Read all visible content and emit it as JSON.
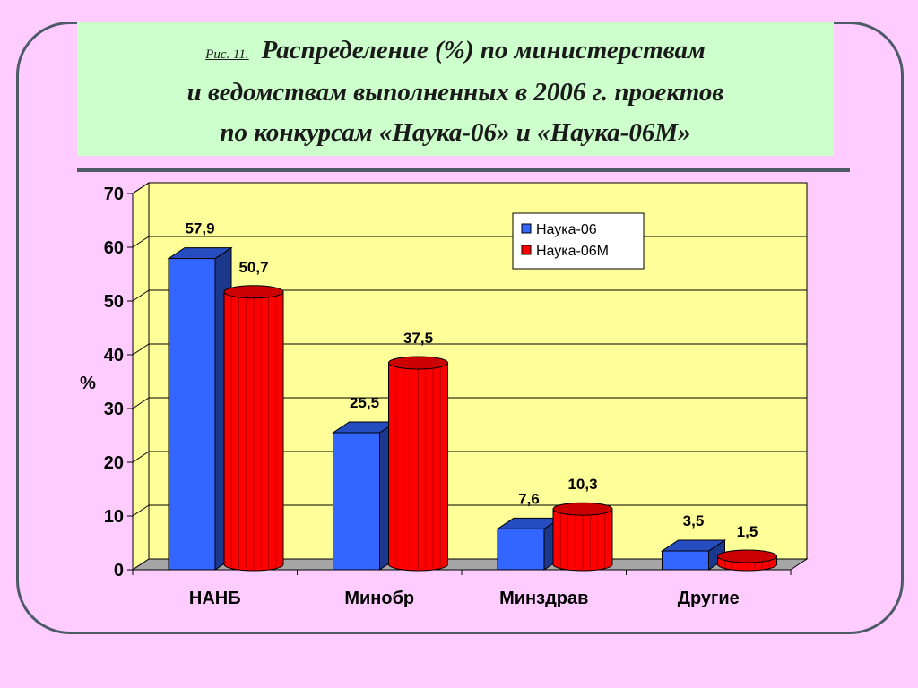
{
  "title": {
    "fig_label": "Рис. 11.",
    "line1": "Распределение (%) по  министерствам",
    "line2": "и ведомствам выполненных в 2006 г. проектов",
    "line3": "по конкурсам «Наука-06» и «Наука-06М»"
  },
  "colors": {
    "background": "#ffccff",
    "title_bg": "#ccffcc",
    "plot_bg": "#ffff99",
    "series1": "#3366ff",
    "series2": "#ff0000",
    "frame": "#4d5b66"
  },
  "chart_data": {
    "type": "bar",
    "categories": [
      "НАНБ",
      "Минобр",
      "Минздрав",
      "Другие"
    ],
    "series": [
      {
        "name": "Наука-06",
        "values": [
          57.9,
          25.5,
          7.6,
          3.5
        ],
        "labels": [
          "57,9",
          "25,5",
          "7,6",
          "3,5"
        ]
      },
      {
        "name": "Наука-06М",
        "values": [
          50.7,
          37.5,
          10.3,
          1.5
        ],
        "labels": [
          "50,7",
          "37,5",
          "10,3",
          "1,5"
        ]
      }
    ],
    "ylabel": "%",
    "ylim": [
      0,
      70
    ],
    "yticks": [
      "0",
      "10",
      "20",
      "30",
      "40",
      "50",
      "60",
      "70"
    ],
    "grid": true,
    "legend_position": "top-right"
  }
}
